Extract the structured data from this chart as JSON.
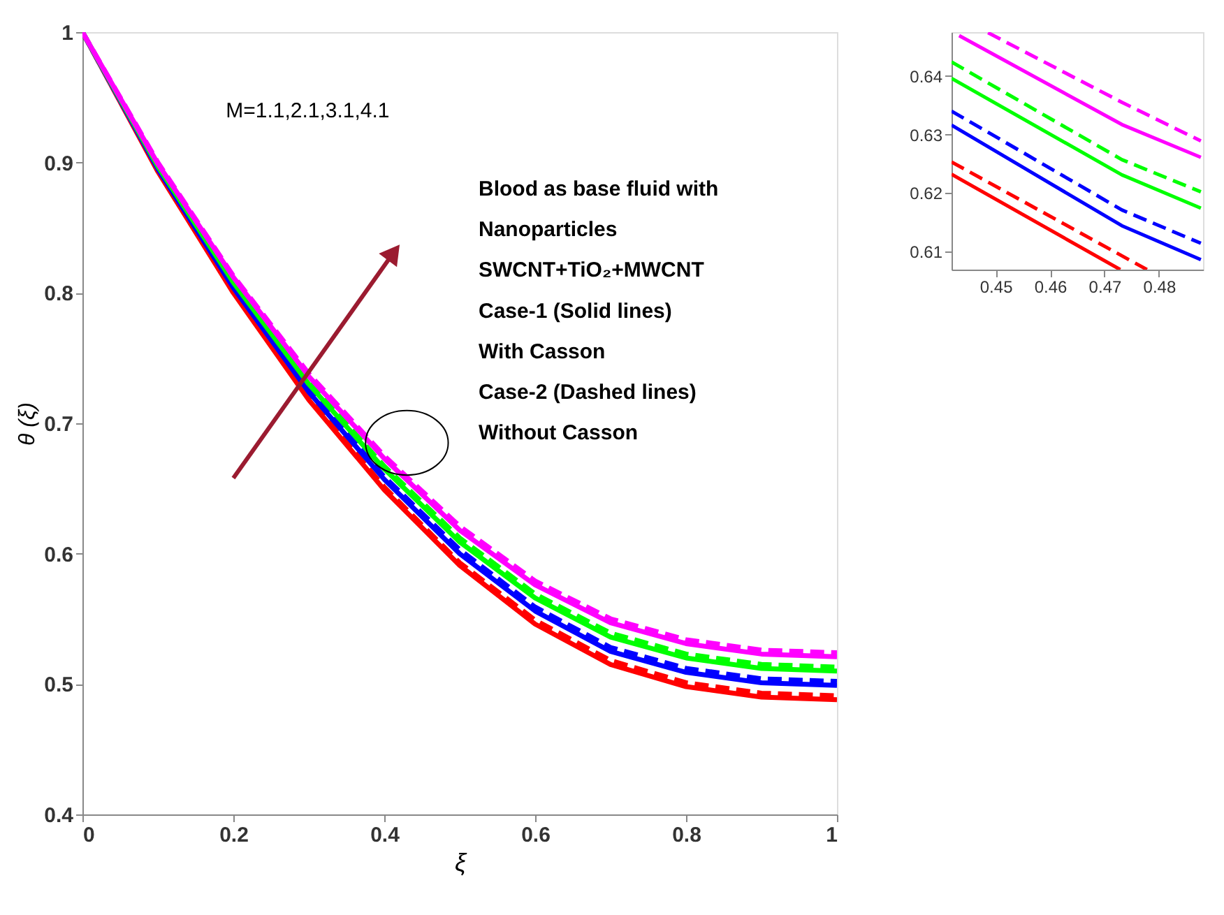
{
  "chart_data": [
    {
      "type": "line",
      "xlabel": "ξ",
      "ylabel": "θ (ξ)",
      "x": [
        0,
        0.1,
        0.2,
        0.3,
        0.4,
        0.5,
        0.6,
        0.7,
        0.8,
        0.9,
        1.0
      ],
      "series": [
        {
          "color": "#ff0000",
          "line_style": "solid",
          "values": [
            1,
            0.893,
            0.8,
            0.718,
            0.649,
            0.591,
            0.546,
            0.515,
            0.498,
            0.49,
            0.488
          ]
        },
        {
          "color": "#ff0000",
          "line_style": "dashed",
          "values": [
            1,
            0.894,
            0.801,
            0.72,
            0.651,
            0.593,
            0.549,
            0.518,
            0.501,
            0.493,
            0.491
          ]
        },
        {
          "color": "#0000ff",
          "line_style": "solid",
          "values": [
            1,
            0.895,
            0.804,
            0.724,
            0.657,
            0.6,
            0.556,
            0.525,
            0.509,
            0.501,
            0.499
          ]
        },
        {
          "color": "#0000ff",
          "line_style": "dashed",
          "values": [
            1,
            0.896,
            0.805,
            0.726,
            0.659,
            0.603,
            0.559,
            0.528,
            0.512,
            0.504,
            0.502
          ]
        },
        {
          "color": "#00ff00",
          "line_style": "solid",
          "values": [
            1,
            0.897,
            0.808,
            0.73,
            0.665,
            0.609,
            0.566,
            0.536,
            0.52,
            0.512,
            0.51
          ]
        },
        {
          "color": "#00ff00",
          "line_style": "dashed",
          "values": [
            1,
            0.898,
            0.809,
            0.732,
            0.667,
            0.612,
            0.569,
            0.539,
            0.523,
            0.515,
            0.513
          ]
        },
        {
          "color": "#ff00ff",
          "line_style": "solid",
          "values": [
            1,
            0.899,
            0.812,
            0.736,
            0.673,
            0.618,
            0.576,
            0.547,
            0.531,
            0.523,
            0.521
          ]
        },
        {
          "color": "#ff00ff",
          "line_style": "dashed",
          "values": [
            1,
            0.9,
            0.813,
            0.738,
            0.675,
            0.621,
            0.579,
            0.55,
            0.534,
            0.526,
            0.524
          ]
        }
      ],
      "xlim": [
        0,
        1
      ],
      "ylim": [
        0.4,
        1
      ],
      "xticks": [
        0,
        0.2,
        0.4,
        0.6,
        0.8,
        1
      ],
      "yticks": [
        0.4,
        0.5,
        0.6,
        0.7,
        0.8,
        0.9,
        1
      ],
      "grid": false,
      "annotations": [
        "M=1.1,2.1,3.1,4.1",
        "Blood as base fluid with",
        "Nanoparticles",
        "SWCNT+TiO₂+MWCNT",
        "Case-1 (Solid lines)",
        "With Casson",
        "Case-2 (Dashed lines)",
        "Without Casson"
      ]
    },
    {
      "type": "line",
      "series": [
        {
          "color": "#ff0000",
          "line_style": "solid",
          "x": [
            0.4419,
            0.4729
          ],
          "values": [
            0.6232,
            0.6069
          ]
        },
        {
          "color": "#ff0000",
          "line_style": "dashed",
          "x": [
            0.4419,
            0.4778
          ],
          "values": [
            0.6253,
            0.6069
          ]
        },
        {
          "color": "#0000ff",
          "line_style": "solid",
          "x": [
            0.4419,
            0.4732,
            0.4877
          ],
          "values": [
            0.6316,
            0.6144,
            0.6086
          ]
        },
        {
          "color": "#0000ff",
          "line_style": "dashed",
          "x": [
            0.4419,
            0.4732,
            0.4877
          ],
          "values": [
            0.634,
            0.6171,
            0.6114
          ]
        },
        {
          "color": "#00ff00",
          "line_style": "solid",
          "x": [
            0.4419,
            0.4732,
            0.4877
          ],
          "values": [
            0.6396,
            0.6231,
            0.6174
          ]
        },
        {
          "color": "#00ff00",
          "line_style": "dashed",
          "x": [
            0.4419,
            0.4732,
            0.4877
          ],
          "values": [
            0.6424,
            0.6257,
            0.6202
          ]
        },
        {
          "color": "#ff00ff",
          "line_style": "solid",
          "x": [
            0.4433,
            0.4732,
            0.4877
          ],
          "values": [
            0.6469,
            0.6317,
            0.6261
          ]
        },
        {
          "color": "#ff00ff",
          "line_style": "dashed",
          "x": [
            0.4486,
            0.4732,
            0.4877
          ],
          "values": [
            0.6474,
            0.6355,
            0.6289
          ]
        }
      ],
      "xlim": [
        0.4419,
        0.4881
      ],
      "ylim": [
        0.6069,
        0.6475
      ],
      "xticks": [
        0.45,
        0.46,
        0.47,
        0.48
      ],
      "yticks": [
        0.61,
        0.62,
        0.63,
        0.64
      ],
      "grid": false
    }
  ]
}
